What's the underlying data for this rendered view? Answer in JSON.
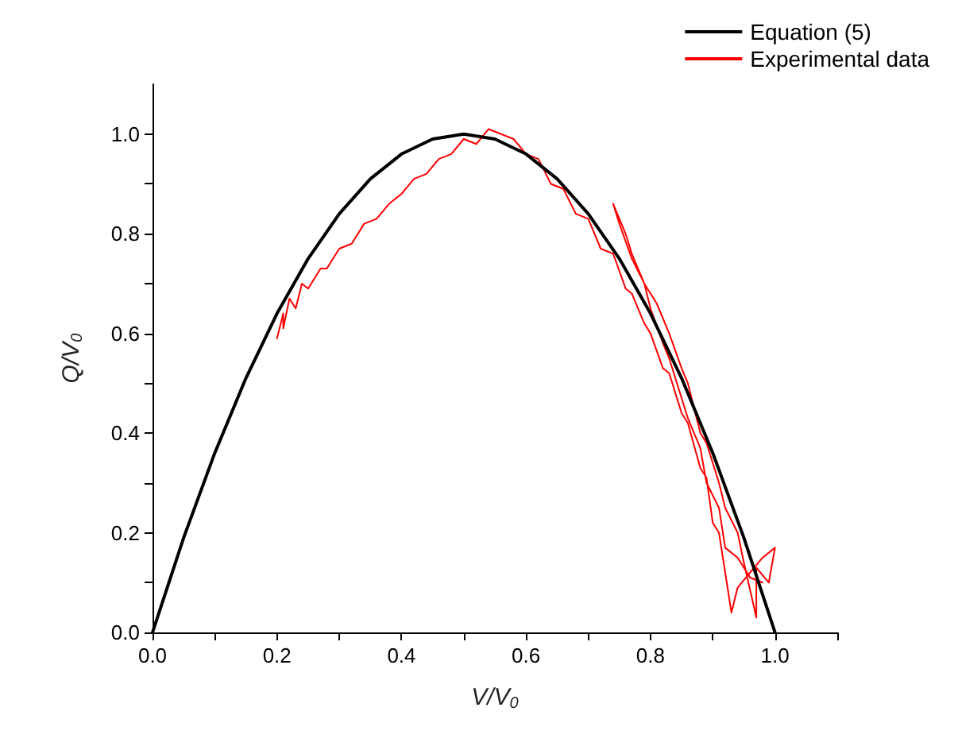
{
  "chart_data": {
    "type": "line",
    "xlabel": "V/V$_{0}$",
    "ylabel": "Q/V$_{0}$",
    "xlim": [
      0,
      1.1
    ],
    "ylim": [
      0,
      1.1
    ],
    "xticks": [
      {
        "value": 0,
        "label": "0.0"
      },
      {
        "value": 0.1,
        "label": null
      },
      {
        "value": 0.2,
        "label": "0.2"
      },
      {
        "value": 0.3,
        "label": null
      },
      {
        "value": 0.4,
        "label": "0.4"
      },
      {
        "value": 0.5,
        "label": null
      },
      {
        "value": 0.6,
        "label": "0.6"
      },
      {
        "value": 0.7,
        "label": null
      },
      {
        "value": 0.8,
        "label": "0.8"
      },
      {
        "value": 0.9,
        "label": null
      },
      {
        "value": 1,
        "label": "1.0"
      },
      {
        "value": 1.1,
        "label": null
      }
    ],
    "yticks": [
      {
        "value": 0,
        "label": "0.0"
      },
      {
        "value": 0.1,
        "label": null
      },
      {
        "value": 0.2,
        "label": "0.2"
      },
      {
        "value": 0.3,
        "label": null
      },
      {
        "value": 0.4,
        "label": "0.4"
      },
      {
        "value": 0.5,
        "label": null
      },
      {
        "value": 0.6,
        "label": "0.6"
      },
      {
        "value": 0.7,
        "label": null
      },
      {
        "value": 0.8,
        "label": "0.8"
      },
      {
        "value": 0.9,
        "label": null
      },
      {
        "value": 1,
        "label": "1.0"
      }
    ],
    "grid": false,
    "legend": "top right",
    "marker": "none",
    "line_style": "solid",
    "series": [
      {
        "name": "Equation (5)",
        "color": "#000000",
        "x": [
          0,
          0.05,
          0.1,
          0.15,
          0.2,
          0.25,
          0.3,
          0.35,
          0.4,
          0.45,
          0.5,
          0.55,
          0.6,
          0.65,
          0.7,
          0.75,
          0.8,
          0.85,
          0.9,
          0.95,
          1
        ],
        "values": [
          0,
          0.19,
          0.36,
          0.51,
          0.64,
          0.75,
          0.84,
          0.91,
          0.96,
          0.99,
          1,
          0.99,
          0.96,
          0.91,
          0.84,
          0.75,
          0.64,
          0.51,
          0.36,
          0.19,
          0
        ]
      },
      {
        "name": "Experimental data",
        "color": "#ff0000",
        "x": [
          0.2,
          0.21,
          0.21,
          0.22,
          0.23,
          0.24,
          0.25,
          0.27,
          0.28,
          0.3,
          0.32,
          0.34,
          0.36,
          0.38,
          0.4,
          0.42,
          0.44,
          0.46,
          0.48,
          0.5,
          0.52,
          0.54,
          0.56,
          0.58,
          0.6,
          0.62,
          0.64,
          0.66,
          0.68,
          0.7,
          0.72,
          0.74,
          0.76,
          0.77,
          0.79,
          0.8,
          0.82,
          0.83,
          0.85,
          0.86,
          0.88,
          0.89,
          0.9,
          0.91,
          0.92,
          0.93,
          0.94,
          0.96,
          0.98,
          1,
          0.99,
          0.97,
          0.97,
          0.95,
          0.94,
          0.92,
          0.91,
          0.89,
          0.88,
          0.86,
          0.85,
          0.83,
          0.81,
          0.79,
          0.77,
          0.75,
          0.74,
          0.76,
          0.77,
          0.79,
          0.8,
          0.82,
          0.83,
          0.85,
          0.86,
          0.88,
          0.89,
          0.91,
          0.92,
          0.94,
          0.96,
          0.98
        ],
        "values": [
          0.59,
          0.64,
          0.61,
          0.67,
          0.65,
          0.7,
          0.69,
          0.73,
          0.73,
          0.77,
          0.78,
          0.82,
          0.83,
          0.86,
          0.88,
          0.91,
          0.92,
          0.95,
          0.96,
          0.99,
          0.98,
          1.01,
          1,
          0.99,
          0.96,
          0.95,
          0.9,
          0.89,
          0.84,
          0.83,
          0.77,
          0.76,
          0.69,
          0.68,
          0.62,
          0.6,
          0.53,
          0.52,
          0.44,
          0.42,
          0.33,
          0.31,
          0.22,
          0.2,
          0.12,
          0.04,
          0.09,
          0.12,
          0.15,
          0.17,
          0.1,
          0.13,
          0.03,
          0.14,
          0.2,
          0.25,
          0.3,
          0.38,
          0.4,
          0.5,
          0.53,
          0.6,
          0.66,
          0.7,
          0.75,
          0.82,
          0.86,
          0.8,
          0.76,
          0.7,
          0.65,
          0.58,
          0.55,
          0.47,
          0.43,
          0.37,
          0.3,
          0.25,
          0.17,
          0.15,
          0.11,
          0.1
        ]
      }
    ]
  }
}
